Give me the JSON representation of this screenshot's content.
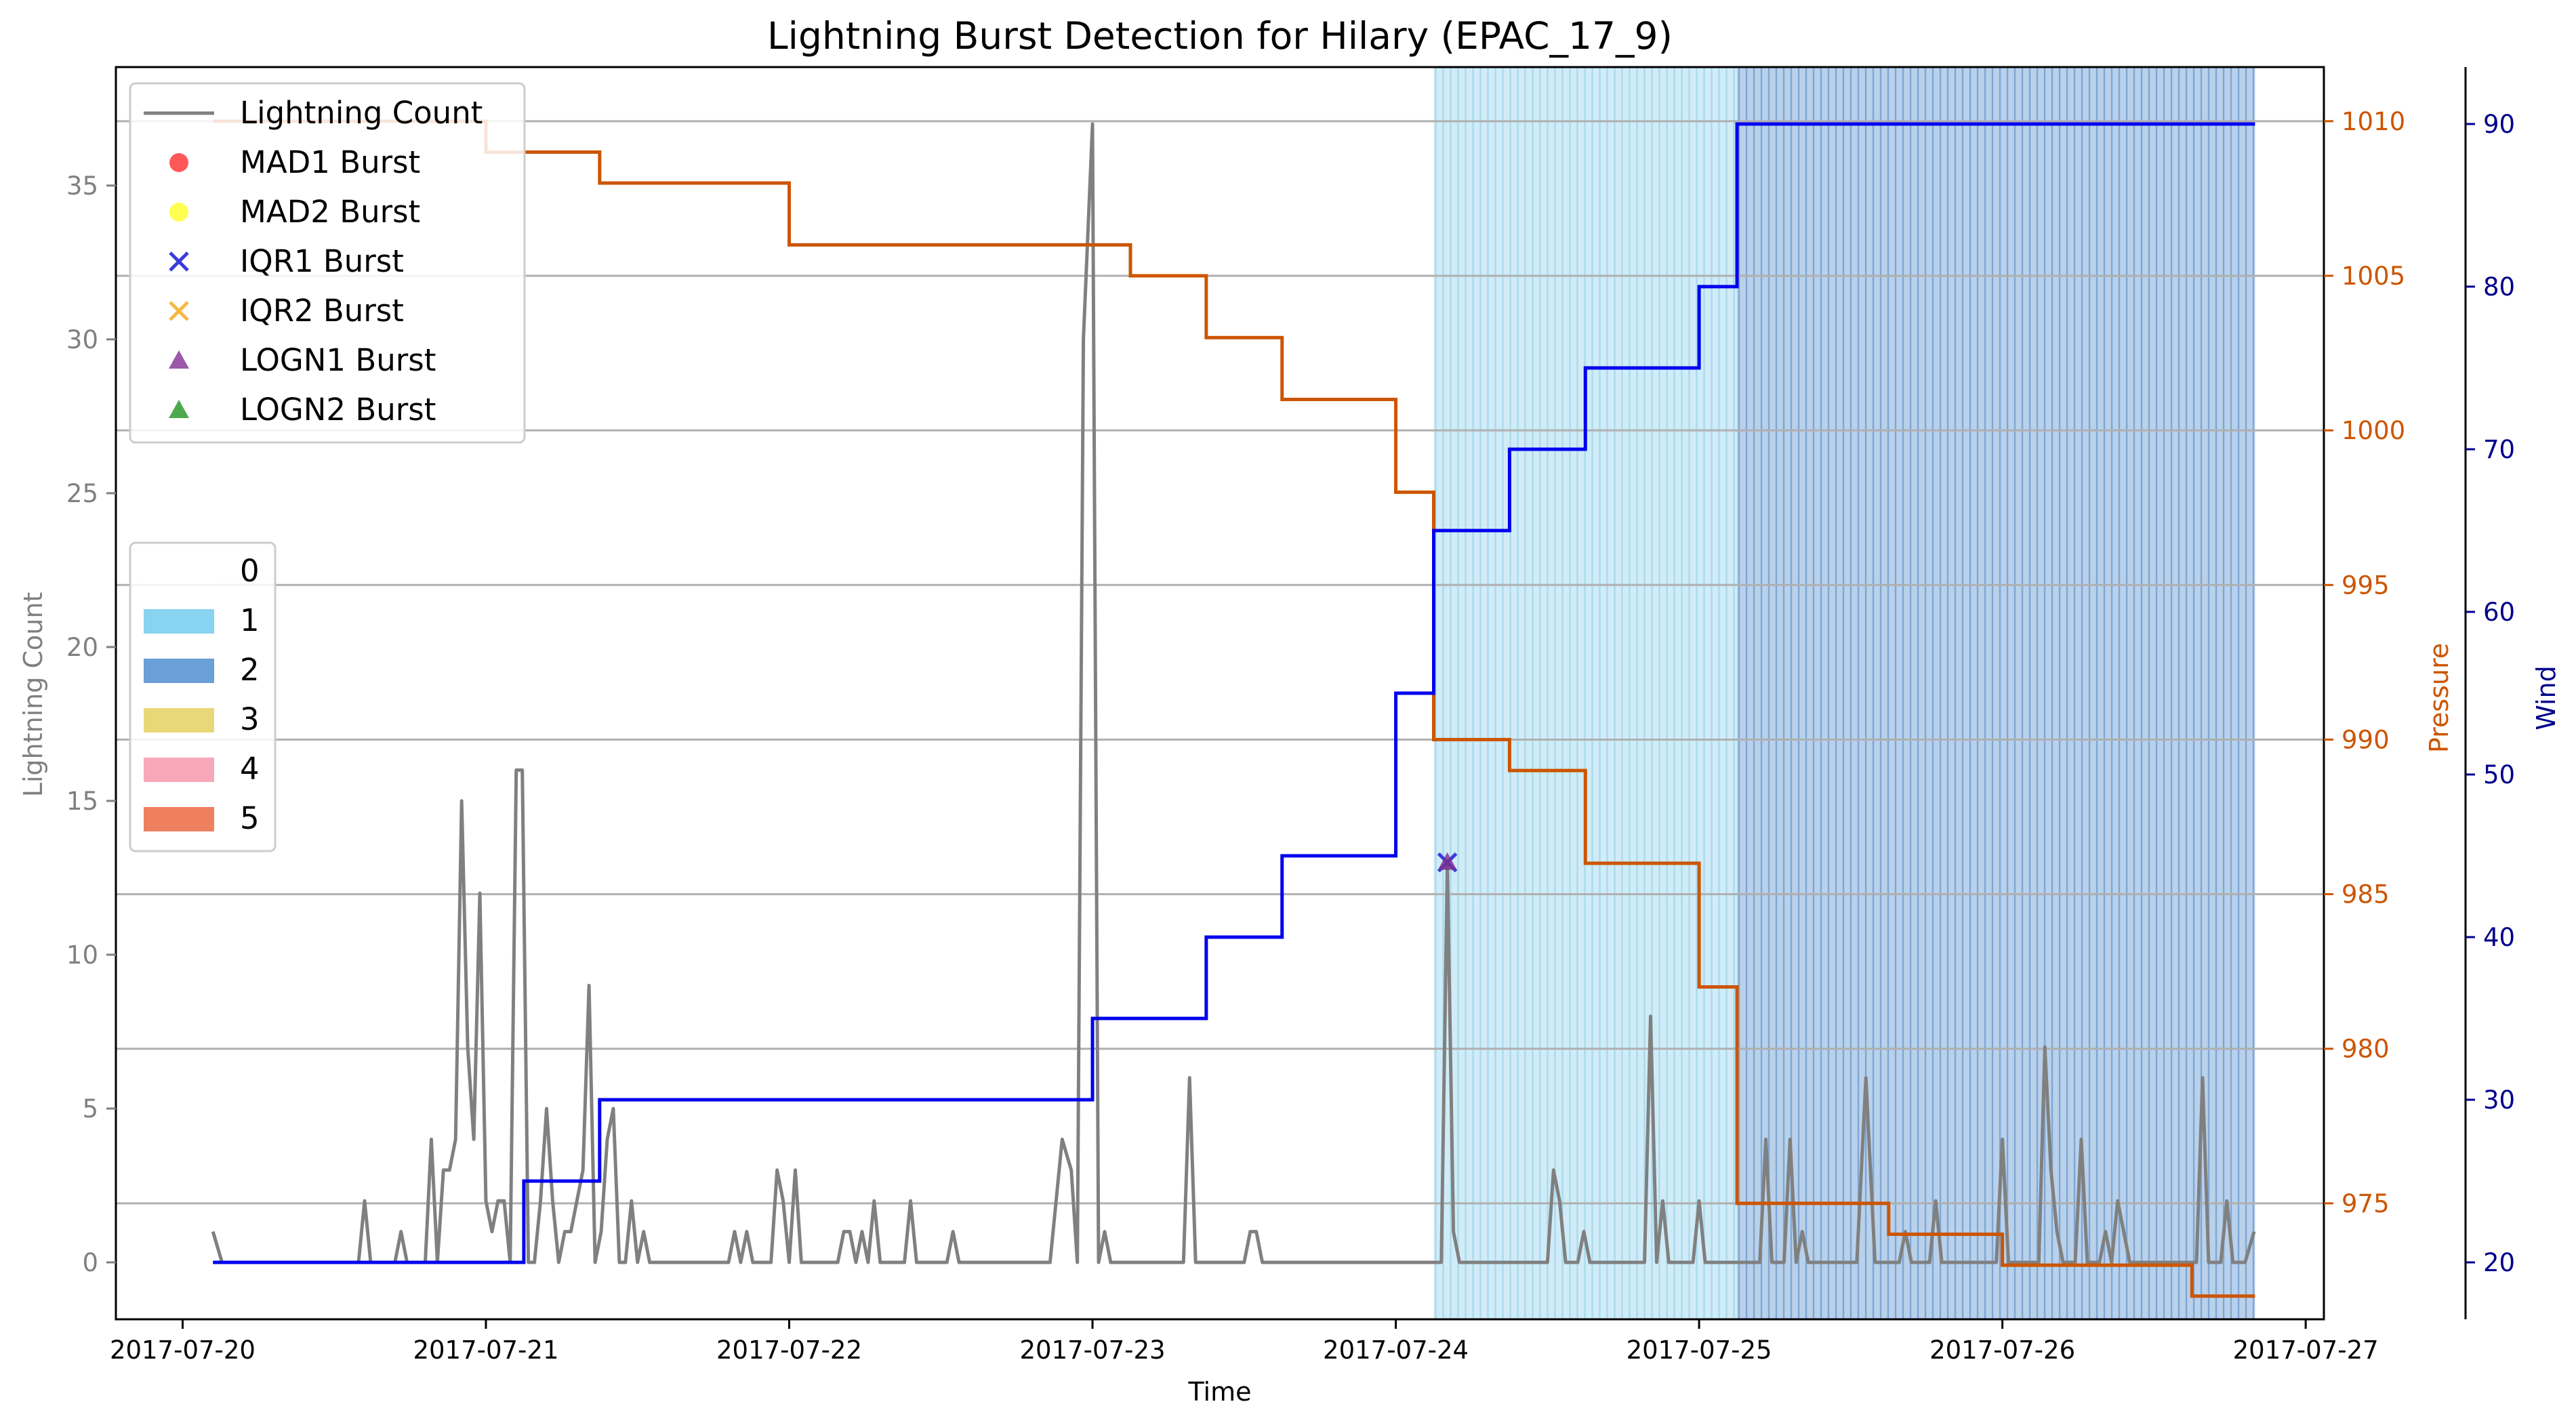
{
  "chart_data": {
    "type": "line",
    "title": "Lightning Burst Detection for Hilary (EPAC_17_9)",
    "xlabel": "Time",
    "ylabel_left": "Lightning Count",
    "ylabel_pressure": "Pressure",
    "ylabel_wind": "Wind",
    "x_range": [
      -0.22,
      7.06
    ],
    "x_ticks": [
      {
        "v": 0,
        "label": "2017-07-20"
      },
      {
        "v": 1,
        "label": "2017-07-21"
      },
      {
        "v": 2,
        "label": "2017-07-22"
      },
      {
        "v": 3,
        "label": "2017-07-23"
      },
      {
        "v": 4,
        "label": "2017-07-24"
      },
      {
        "v": 5,
        "label": "2017-07-25"
      },
      {
        "v": 6,
        "label": "2017-07-26"
      },
      {
        "v": 7,
        "label": "2017-07-27"
      }
    ],
    "y_left": {
      "range": [
        -1.85,
        38.85
      ],
      "ticks": [
        0,
        5,
        10,
        15,
        20,
        25,
        30,
        35
      ]
    },
    "y_pressure": {
      "range": [
        971.25,
        1011.75
      ],
      "ticks": [
        975,
        980,
        985,
        990,
        995,
        1000,
        1005,
        1010
      ]
    },
    "y_wind": {
      "range": [
        16.5,
        93.5
      ],
      "ticks": [
        20,
        30,
        40,
        50,
        60,
        70,
        80,
        90
      ]
    },
    "grid": "horizontal",
    "colors": {
      "lightning": "#808080",
      "pressure": "#cc5500",
      "wind": "#0000ee",
      "pressure_axis": "#cc5500",
      "wind_axis": "#00008b",
      "band_1": "#87ceeb",
      "band_2": "#4a86c8"
    },
    "category_bands": [
      {
        "start": 4.125,
        "end": 5.125,
        "category": "1",
        "color": "#87ceeb"
      },
      {
        "start": 5.125,
        "end": 6.833,
        "category": "2",
        "color": "#4a86c8"
      }
    ],
    "lightning_count": {
      "name": "Lightning Count",
      "points": [
        [
          0.1,
          1
        ],
        [
          0.13,
          0
        ],
        [
          0.58,
          0
        ],
        [
          0.6,
          2
        ],
        [
          0.62,
          0
        ],
        [
          0.7,
          0
        ],
        [
          0.72,
          1
        ],
        [
          0.74,
          0
        ],
        [
          0.8,
          0
        ],
        [
          0.82,
          4
        ],
        [
          0.84,
          0
        ],
        [
          0.86,
          3
        ],
        [
          0.88,
          3
        ],
        [
          0.9,
          4
        ],
        [
          0.92,
          15
        ],
        [
          0.94,
          7
        ],
        [
          0.96,
          4
        ],
        [
          0.98,
          12
        ],
        [
          1.0,
          2
        ],
        [
          1.02,
          1
        ],
        [
          1.04,
          2
        ],
        [
          1.06,
          2
        ],
        [
          1.08,
          0
        ],
        [
          1.1,
          16
        ],
        [
          1.12,
          16
        ],
        [
          1.14,
          0
        ],
        [
          1.16,
          0
        ],
        [
          1.18,
          2
        ],
        [
          1.2,
          5
        ],
        [
          1.22,
          2
        ],
        [
          1.24,
          0
        ],
        [
          1.26,
          1
        ],
        [
          1.28,
          1
        ],
        [
          1.3,
          2
        ],
        [
          1.32,
          3
        ],
        [
          1.34,
          9
        ],
        [
          1.36,
          0
        ],
        [
          1.38,
          1
        ],
        [
          1.4,
          4
        ],
        [
          1.42,
          5
        ],
        [
          1.44,
          0
        ],
        [
          1.46,
          0
        ],
        [
          1.48,
          2
        ],
        [
          1.5,
          0
        ],
        [
          1.52,
          1
        ],
        [
          1.54,
          0
        ],
        [
          1.8,
          0
        ],
        [
          1.82,
          1
        ],
        [
          1.84,
          0
        ],
        [
          1.86,
          1
        ],
        [
          1.88,
          0
        ],
        [
          1.94,
          0
        ],
        [
          1.96,
          3
        ],
        [
          1.98,
          2
        ],
        [
          2.0,
          0
        ],
        [
          2.02,
          3
        ],
        [
          2.04,
          0
        ],
        [
          2.16,
          0
        ],
        [
          2.18,
          1
        ],
        [
          2.2,
          1
        ],
        [
          2.22,
          0
        ],
        [
          2.24,
          1
        ],
        [
          2.26,
          0
        ],
        [
          2.28,
          2
        ],
        [
          2.3,
          0
        ],
        [
          2.38,
          0
        ],
        [
          2.4,
          2
        ],
        [
          2.42,
          0
        ],
        [
          2.52,
          0
        ],
        [
          2.54,
          1
        ],
        [
          2.56,
          0
        ],
        [
          2.86,
          0
        ],
        [
          2.9,
          4
        ],
        [
          2.93,
          3
        ],
        [
          2.95,
          0
        ],
        [
          2.97,
          30
        ],
        [
          3.0,
          37
        ],
        [
          3.02,
          0
        ],
        [
          3.04,
          1
        ],
        [
          3.06,
          0
        ],
        [
          3.3,
          0
        ],
        [
          3.32,
          6
        ],
        [
          3.34,
          0
        ],
        [
          3.5,
          0
        ],
        [
          3.52,
          1
        ],
        [
          3.54,
          1
        ],
        [
          3.56,
          0
        ],
        [
          4.15,
          0
        ],
        [
          4.17,
          13
        ],
        [
          4.19,
          1
        ],
        [
          4.21,
          0
        ],
        [
          4.5,
          0
        ],
        [
          4.52,
          3
        ],
        [
          4.54,
          2
        ],
        [
          4.56,
          0
        ],
        [
          4.6,
          0
        ],
        [
          4.62,
          1
        ],
        [
          4.64,
          0
        ],
        [
          4.82,
          0
        ],
        [
          4.84,
          8
        ],
        [
          4.86,
          0
        ],
        [
          4.88,
          2
        ],
        [
          4.9,
          0
        ],
        [
          4.98,
          0
        ],
        [
          5.0,
          2
        ],
        [
          5.02,
          0
        ],
        [
          5.2,
          0
        ],
        [
          5.22,
          4
        ],
        [
          5.24,
          0
        ],
        [
          5.28,
          0
        ],
        [
          5.3,
          4
        ],
        [
          5.32,
          0
        ],
        [
          5.34,
          1
        ],
        [
          5.36,
          0
        ],
        [
          5.52,
          0
        ],
        [
          5.55,
          6
        ],
        [
          5.58,
          0
        ],
        [
          5.66,
          0
        ],
        [
          5.68,
          1
        ],
        [
          5.7,
          0
        ],
        [
          5.76,
          0
        ],
        [
          5.78,
          2
        ],
        [
          5.8,
          0
        ],
        [
          5.98,
          0
        ],
        [
          6.0,
          4
        ],
        [
          6.02,
          0
        ],
        [
          6.12,
          0
        ],
        [
          6.14,
          7
        ],
        [
          6.16,
          3
        ],
        [
          6.18,
          1
        ],
        [
          6.2,
          0
        ],
        [
          6.24,
          0
        ],
        [
          6.26,
          4
        ],
        [
          6.28,
          0
        ],
        [
          6.32,
          0
        ],
        [
          6.34,
          1
        ],
        [
          6.36,
          0
        ],
        [
          6.38,
          2
        ],
        [
          6.4,
          1
        ],
        [
          6.42,
          0
        ],
        [
          6.64,
          0
        ],
        [
          6.66,
          6
        ],
        [
          6.68,
          0
        ],
        [
          6.72,
          0
        ],
        [
          6.74,
          2
        ],
        [
          6.76,
          0
        ],
        [
          6.8,
          0
        ],
        [
          6.83,
          1
        ]
      ]
    },
    "pressure": {
      "name": "Pressure",
      "step_points": [
        [
          0.1,
          1010
        ],
        [
          1.0,
          1009
        ],
        [
          1.375,
          1008
        ],
        [
          2.0,
          1006
        ],
        [
          3.125,
          1005
        ],
        [
          3.375,
          1003
        ],
        [
          3.625,
          1001
        ],
        [
          4.0,
          998
        ],
        [
          4.125,
          990
        ],
        [
          4.375,
          989
        ],
        [
          4.625,
          986
        ],
        [
          5.0,
          982
        ],
        [
          5.125,
          975
        ],
        [
          5.625,
          974
        ],
        [
          6.0,
          973
        ],
        [
          6.625,
          972
        ],
        [
          6.833,
          972
        ]
      ]
    },
    "wind": {
      "name": "Wind",
      "step_points": [
        [
          0.1,
          20
        ],
        [
          1.125,
          25
        ],
        [
          1.375,
          30
        ],
        [
          3.0,
          35
        ],
        [
          3.375,
          40
        ],
        [
          3.625,
          45
        ],
        [
          4.0,
          55
        ],
        [
          4.125,
          65
        ],
        [
          4.375,
          70
        ],
        [
          4.625,
          75
        ],
        [
          5.0,
          80
        ],
        [
          5.125,
          90
        ],
        [
          6.833,
          90
        ]
      ]
    },
    "bursts": [
      {
        "method": "IQR1",
        "x": 4.17,
        "y": 13,
        "marker": "x",
        "color": "#3a3adc"
      },
      {
        "method": "LOGN1",
        "x": 4.17,
        "y": 13,
        "marker": "triangle",
        "color": "#7b2d8e"
      }
    ],
    "legend_series": [
      {
        "label": "Lightning Count",
        "kind": "line",
        "color": "#808080"
      },
      {
        "label": "MAD1 Burst",
        "kind": "circle",
        "color": "#ff3b3b"
      },
      {
        "label": "MAD2 Burst",
        "kind": "circle",
        "color": "#ffff33"
      },
      {
        "label": "IQR1 Burst",
        "kind": "x",
        "color": "#3a3adc"
      },
      {
        "label": "IQR2 Burst",
        "kind": "x",
        "color": "#f5b942"
      },
      {
        "label": "LOGN1 Burst",
        "kind": "triangle",
        "color": "#8a3a9a"
      },
      {
        "label": "LOGN2 Burst",
        "kind": "triangle",
        "color": "#2e9a2e"
      }
    ],
    "legend_categories": [
      {
        "label": "0",
        "color": "#ffffff"
      },
      {
        "label": "1",
        "color": "#87d3f0"
      },
      {
        "label": "2",
        "color": "#6a9fd8"
      },
      {
        "label": "3",
        "color": "#e8d878"
      },
      {
        "label": "4",
        "color": "#f8a8b8"
      },
      {
        "label": "5",
        "color": "#ee8060"
      }
    ],
    "legend_placement": [
      "upper-left",
      "center-left"
    ]
  }
}
